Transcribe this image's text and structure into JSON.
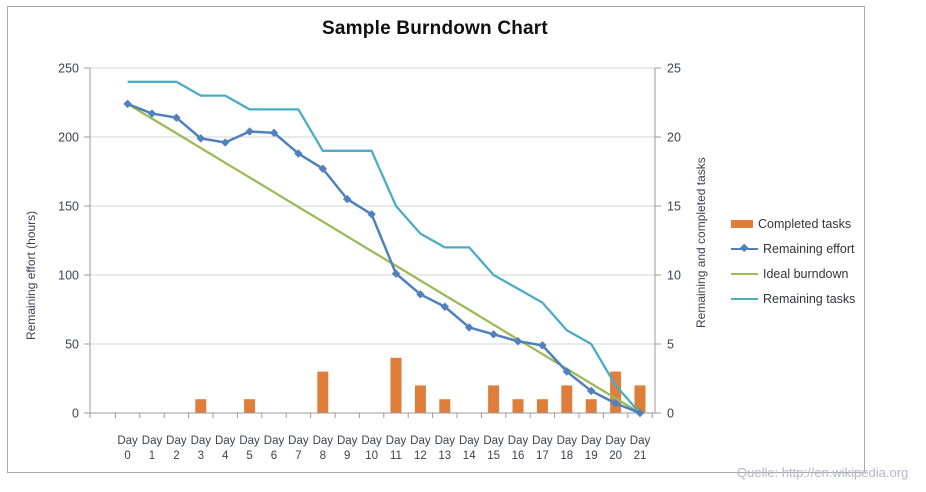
{
  "chart_data": {
    "type": "combo",
    "title": "Sample Burndown Chart",
    "categories": [
      "Day 0",
      "Day 1",
      "Day 2",
      "Day 3",
      "Day 4",
      "Day 5",
      "Day 6",
      "Day 7",
      "Day 8",
      "Day 9",
      "Day 10",
      "Day 11",
      "Day 12",
      "Day 13",
      "Day 14",
      "Day 15",
      "Day 16",
      "Day 17",
      "Day 18",
      "Day 19",
      "Day 20",
      "Day 21"
    ],
    "left_axis": {
      "title": "Remaining effort (hours)",
      "min": 0,
      "max": 250,
      "tick_step": 50,
      "ticks": [
        0,
        50,
        100,
        150,
        200,
        250
      ]
    },
    "right_axis": {
      "title": "Remaining and  completed tasks",
      "min": 0,
      "max": 25,
      "tick_step": 5,
      "ticks": [
        0,
        5,
        10,
        15,
        20,
        25
      ]
    },
    "grid": true,
    "legend_position": "right",
    "series": [
      {
        "name": "Completed tasks",
        "type": "bar",
        "axis": "right",
        "color": "#DF7E3B",
        "values": [
          0,
          0,
          0,
          1,
          0,
          1,
          0,
          0,
          3,
          0,
          0,
          4,
          2,
          1,
          0,
          2,
          1,
          1,
          2,
          1,
          3,
          2
        ]
      },
      {
        "name": "Remaining effort",
        "type": "line",
        "marker": "diamond",
        "axis": "left",
        "color": "#4F81BD",
        "values": [
          224,
          217,
          214,
          199,
          196,
          204,
          203,
          188,
          177,
          155,
          144,
          101,
          86,
          77,
          62,
          57,
          52,
          49,
          30,
          16,
          7,
          0
        ]
      },
      {
        "name": "Ideal burndown",
        "type": "line",
        "axis": "left",
        "color": "#9BBB59",
        "values": [
          224,
          213.3,
          202.7,
          192,
          181.3,
          170.7,
          160,
          149.3,
          138.7,
          128,
          117.3,
          106.7,
          96,
          85.3,
          74.7,
          64,
          53.3,
          42.7,
          32,
          21.3,
          10.7,
          0
        ]
      },
      {
        "name": "Remaining tasks",
        "type": "line",
        "axis": "right",
        "color": "#4BACC6",
        "values": [
          24,
          24,
          24,
          23,
          23,
          22,
          22,
          22,
          19,
          19,
          19,
          15,
          13,
          12,
          12,
          10,
          9,
          8,
          6,
          5,
          2,
          0
        ]
      }
    ],
    "source_note": "Quelle: http://en.wikipedia.org"
  },
  "colors": {
    "gridline": "#D4D4D4",
    "axis": "#9B9B9B",
    "tick_label": "#3E4151",
    "legend_text": "#33343C",
    "title": "#101010",
    "source": "#B5B6CD",
    "frame_border": "#A8A8A8",
    "background": "#FFFFFF"
  }
}
